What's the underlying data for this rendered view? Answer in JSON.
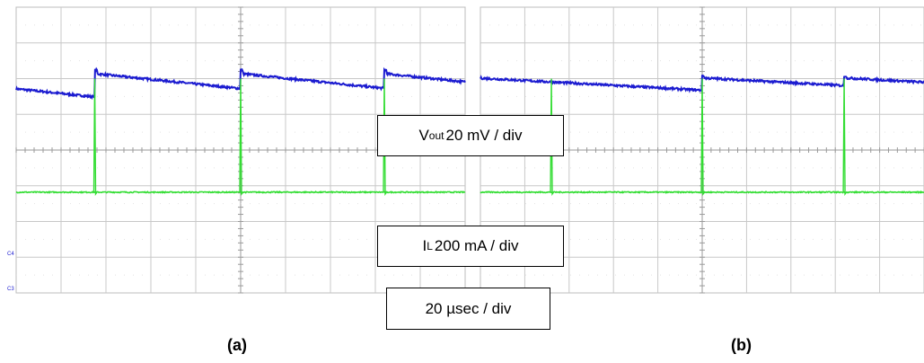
{
  "chart_data": [
    {
      "type": "line",
      "panel_label": "(a)",
      "series": [
        {
          "color": "#1b1bd0",
          "trace": "vout",
          "pulse_times_div": [
            1.75,
            5.0,
            8.2
          ],
          "base_level_div": 5.72,
          "step_div": 0.42
        },
        {
          "color": "#33dd33",
          "trace": "il",
          "spike_times_div": [
            1.75,
            5.0,
            8.2
          ],
          "base_level_div": 2.82,
          "spike_top_div": 6.0
        }
      ],
      "grid": true,
      "x_divisions": 10,
      "y_divisions": 8
    },
    {
      "type": "line",
      "panel_label": "(b)",
      "series": [
        {
          "color": "#1b1bd0",
          "trace": "vout",
          "pulse_times_div": [
            -0.1,
            5.0,
            8.2
          ],
          "base_level_div": 5.8,
          "step_div": 0.22
        },
        {
          "color": "#33dd33",
          "trace": "il",
          "spike_times_div": [
            1.6,
            5.0,
            8.2
          ],
          "base_level_div": 2.82,
          "spike_top_div": 6.0
        }
      ],
      "grid": true,
      "x_divisions": 10,
      "y_divisions": 8
    }
  ],
  "labels": {
    "vout_main": "V",
    "vout_sub": "out",
    "vout_scale": " 20 mV / div",
    "il_main": "I",
    "il_sub": "L",
    "il_scale": " 200 mA / div",
    "time_scale": "20 µsec / div"
  },
  "channel_markers": {
    "ch4": "C4",
    "ch3": "C3"
  },
  "colors": {
    "vout": "#1b1bd0",
    "il": "#33dd33",
    "grid": "#c8c8c8"
  }
}
